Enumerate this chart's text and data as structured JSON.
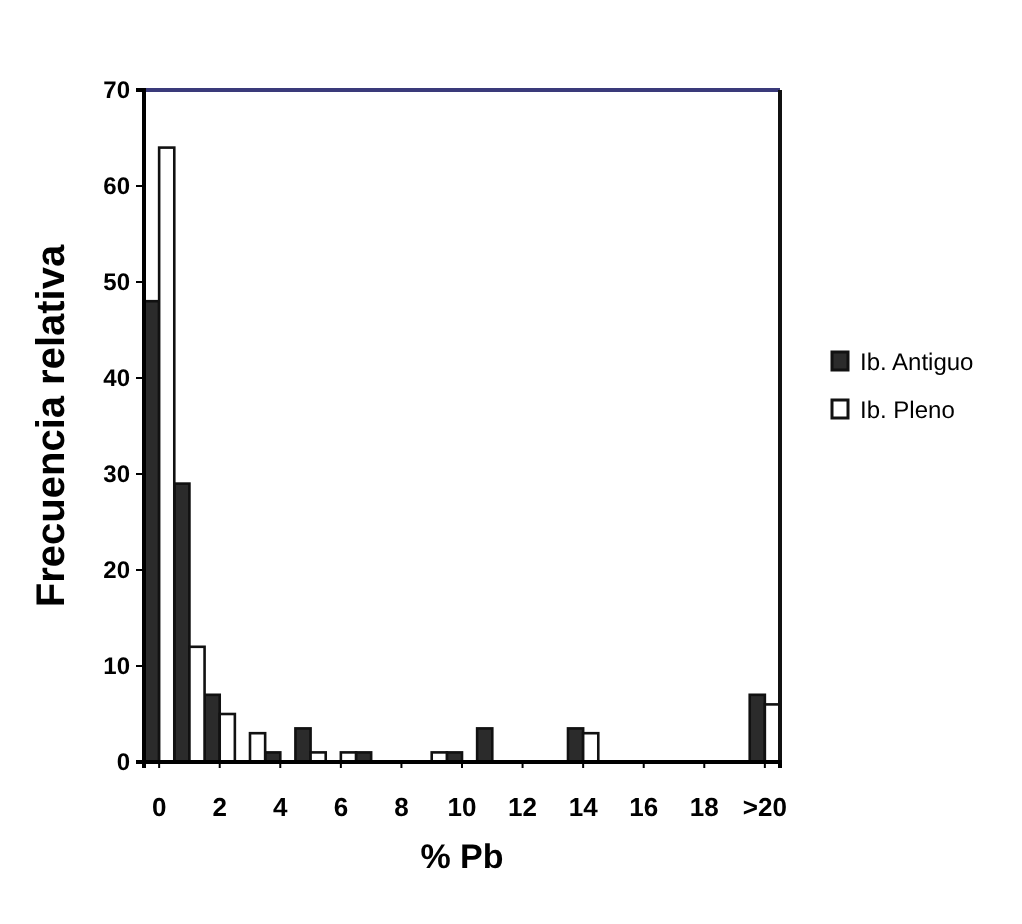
{
  "chart_data": {
    "type": "bar",
    "xlabel": "% Pb",
    "ylabel": "Frecuencia relativa",
    "categories": [
      "0",
      null,
      "2",
      null,
      "4",
      null,
      "6",
      null,
      "8",
      null,
      "10",
      null,
      "12",
      null,
      "14",
      null,
      "16",
      null,
      "18",
      null,
      ">20"
    ],
    "series": [
      {
        "name": "Ib. Antiguo",
        "color": "#2b2b2b",
        "values": [
          48,
          29,
          7,
          0,
          1,
          3.5,
          0,
          1,
          0,
          0,
          1,
          3.5,
          0,
          0,
          3.5,
          0,
          0,
          0,
          0,
          0,
          7
        ]
      },
      {
        "name": "Ib. Pleno",
        "color": "#ffffff",
        "values": [
          64,
          12,
          5,
          3,
          0,
          1,
          1,
          0,
          0,
          1,
          0,
          0,
          0,
          0,
          3,
          0,
          0,
          0,
          0,
          0,
          6
        ]
      }
    ],
    "ylim": [
      0,
      70
    ],
    "yticks": [
      0,
      10,
      20,
      30,
      40,
      50,
      60,
      70
    ],
    "grid": false,
    "legend": "right"
  }
}
